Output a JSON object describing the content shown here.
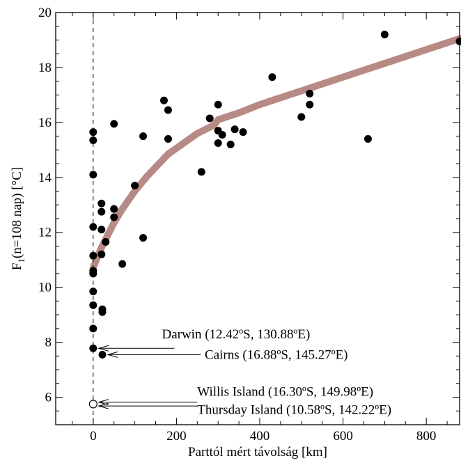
{
  "chart_data": {
    "type": "scatter",
    "title": "",
    "xlabel": "Parttól mért távolság  [km]",
    "ylabel": {
      "main": "F",
      "sub": "1",
      "rest": "(n=108 nap)  [°C]"
    },
    "xlim": [
      -90,
      880
    ],
    "ylim": [
      5,
      20
    ],
    "xticks": [
      0,
      200,
      400,
      600,
      800
    ],
    "yticks": [
      6,
      8,
      10,
      12,
      14,
      16,
      18,
      20
    ],
    "grid": false,
    "legend": "none",
    "reference_line": {
      "x": 0,
      "style": "dashed"
    },
    "colors": {
      "points": "#000000",
      "trend": "#b88a86"
    },
    "points": [
      {
        "x": 0,
        "y": 15.65
      },
      {
        "x": 0,
        "y": 15.35
      },
      {
        "x": 0,
        "y": 14.1
      },
      {
        "x": 0,
        "y": 12.2
      },
      {
        "x": 0,
        "y": 11.15
      },
      {
        "x": 0,
        "y": 10.6
      },
      {
        "x": 0,
        "y": 10.5
      },
      {
        "x": 0,
        "y": 9.85
      },
      {
        "x": 0,
        "y": 9.35
      },
      {
        "x": 0,
        "y": 8.5
      },
      {
        "x": 0,
        "y": 7.78
      },
      {
        "x": 20,
        "y": 13.05
      },
      {
        "x": 20,
        "y": 12.75
      },
      {
        "x": 20,
        "y": 12.1
      },
      {
        "x": 20,
        "y": 11.2
      },
      {
        "x": 22,
        "y": 9.2
      },
      {
        "x": 22,
        "y": 9.1
      },
      {
        "x": 22,
        "y": 7.55
      },
      {
        "x": 30,
        "y": 11.65
      },
      {
        "x": 50,
        "y": 15.95
      },
      {
        "x": 50,
        "y": 12.85
      },
      {
        "x": 50,
        "y": 12.55
      },
      {
        "x": 70,
        "y": 10.85
      },
      {
        "x": 100,
        "y": 13.7
      },
      {
        "x": 120,
        "y": 15.5
      },
      {
        "x": 120,
        "y": 11.8
      },
      {
        "x": 170,
        "y": 16.8
      },
      {
        "x": 180,
        "y": 16.45
      },
      {
        "x": 180,
        "y": 15.4
      },
      {
        "x": 260,
        "y": 14.2
      },
      {
        "x": 280,
        "y": 16.15
      },
      {
        "x": 300,
        "y": 16.65
      },
      {
        "x": 300,
        "y": 15.7
      },
      {
        "x": 300,
        "y": 15.25
      },
      {
        "x": 310,
        "y": 15.55
      },
      {
        "x": 330,
        "y": 15.2
      },
      {
        "x": 340,
        "y": 15.75
      },
      {
        "x": 360,
        "y": 15.65
      },
      {
        "x": 430,
        "y": 17.65
      },
      {
        "x": 500,
        "y": 16.2
      },
      {
        "x": 520,
        "y": 17.05
      },
      {
        "x": 520,
        "y": 16.65
      },
      {
        "x": 660,
        "y": 15.4
      },
      {
        "x": 700,
        "y": 19.2
      },
      {
        "x": 880,
        "y": 18.95
      }
    ],
    "open_points": [
      {
        "x": 0,
        "y": 5.75
      }
    ],
    "trend": {
      "x": [
        0,
        10,
        20,
        30,
        50,
        70,
        100,
        130,
        180,
        250,
        290,
        300,
        350,
        400,
        500,
        600,
        660,
        700,
        800,
        880
      ],
      "y": [
        10.7,
        11.1,
        11.45,
        11.75,
        12.35,
        12.85,
        13.5,
        14.05,
        14.85,
        15.6,
        15.9,
        16.1,
        16.35,
        16.65,
        17.15,
        17.65,
        17.95,
        18.15,
        18.65,
        19.05
      ]
    },
    "annotations": [
      {
        "text": "Darwin (12.42ºS, 130.88ºE)",
        "arrow_to": {
          "x": 0,
          "y": 7.78
        },
        "tail_x": 195,
        "text_x": 165,
        "text_y": 8.3,
        "line_y": 7.78
      },
      {
        "text": "Cairns (16.88ºS, 145.27ºE)",
        "arrow_to": {
          "x": 22,
          "y": 7.55
        },
        "tail_x": 258,
        "text_x": 268,
        "text_y": 7.55,
        "line_y": 7.55
      },
      {
        "text": "Willis Island (16.30ºS, 149.98ºE)",
        "arrow_to": {
          "x": 0,
          "y": 5.82
        },
        "tail_x": 250,
        "text_x": 250,
        "text_y": 6.2,
        "line_y": 5.82
      },
      {
        "text": "Thursday Island (10.58ºS, 142.22ºE)",
        "arrow_to": {
          "x": 0,
          "y": 5.68
        },
        "tail_x": 250,
        "text_x": 250,
        "text_y": 5.55,
        "line_y": 5.68
      }
    ]
  }
}
